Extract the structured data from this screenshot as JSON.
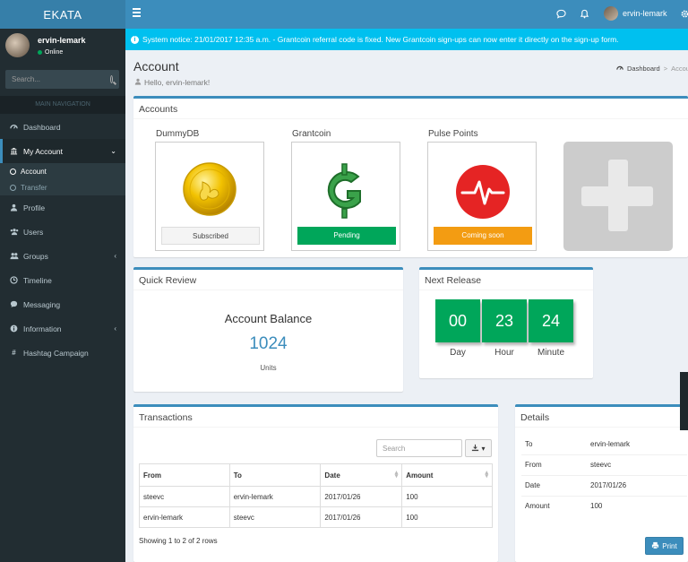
{
  "app": {
    "logo": "EKATA"
  },
  "header": {
    "user_name": "ervin-lemark"
  },
  "sidebar": {
    "user_name": "ervin-lemark",
    "status": "Online",
    "search_placeholder": "Search...",
    "nav_header": "MAIN NAVIGATION",
    "items": [
      {
        "label": "Dashboard",
        "icon": "dashboard-icon"
      },
      {
        "label": "My Account",
        "icon": "bank-icon"
      },
      {
        "label": "Profile",
        "icon": "user-icon"
      },
      {
        "label": "Users",
        "icon": "users-icon"
      },
      {
        "label": "Groups",
        "icon": "groups-icon"
      },
      {
        "label": "Timeline",
        "icon": "clock-icon"
      },
      {
        "label": "Messaging",
        "icon": "chat-icon"
      },
      {
        "label": "Information",
        "icon": "info-icon"
      },
      {
        "label": "Hashtag Campaign",
        "icon": "hashtag-icon"
      }
    ],
    "subitems": [
      {
        "label": "Account"
      },
      {
        "label": "Transfer"
      }
    ]
  },
  "notice": {
    "text": "System notice: 21/01/2017 12:35 a.m. - Grantcoin referral code is fixed. New Grantcoin sign-ups can now enter it directly on the sign-up form."
  },
  "page": {
    "title": "Account",
    "hello": "Hello, ervin-lemark!"
  },
  "breadcrumb": {
    "home": "Dashboard",
    "sep": ">",
    "current": "Account"
  },
  "accounts": {
    "title": "Accounts",
    "cards": [
      {
        "name": "DummyDB",
        "status": "Subscribed",
        "status_color": "#f4f4f4"
      },
      {
        "name": "Grantcoin",
        "status": "Pending",
        "status_color": "#00a65a"
      },
      {
        "name": "Pulse Points",
        "status": "Coming soon",
        "status_color": "#f39c12"
      }
    ]
  },
  "quick_review": {
    "title": "Quick Review",
    "label": "Account Balance",
    "value": "1024",
    "unit": "Units"
  },
  "next_release": {
    "title": "Next Release",
    "tiles": [
      {
        "value": "00",
        "label": "Day"
      },
      {
        "value": "23",
        "label": "Hour"
      },
      {
        "value": "24",
        "label": "Minute"
      }
    ]
  },
  "transactions": {
    "title": "Transactions",
    "search_placeholder": "Search",
    "columns": [
      "From",
      "To",
      "Date",
      "Amount"
    ],
    "rows": [
      [
        "steevc",
        "ervin-lemark",
        "2017/01/26",
        "100"
      ],
      [
        "ervin-lemark",
        "steevc",
        "2017/01/26",
        "100"
      ]
    ],
    "footer": "Showing 1 to 2 of 2 rows"
  },
  "details": {
    "title": "Details",
    "rows": [
      {
        "key": "To",
        "value": "ervin-lemark"
      },
      {
        "key": "From",
        "value": "steevc"
      },
      {
        "key": "Date",
        "value": "2017/01/26"
      },
      {
        "key": "Amount",
        "value": "100"
      }
    ],
    "print_label": "Print"
  }
}
